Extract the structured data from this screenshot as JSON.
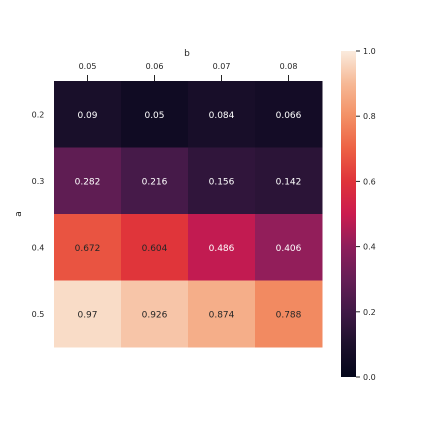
{
  "chart_data": {
    "type": "heatmap",
    "title": "",
    "xlabel": "b",
    "ylabel": "a",
    "x": [
      "0.05",
      "0.06",
      "0.07",
      "0.08"
    ],
    "y": [
      "0.2",
      "0.3",
      "0.4",
      "0.5"
    ],
    "values": [
      [
        0.09,
        0.05,
        0.084,
        0.066
      ],
      [
        0.282,
        0.216,
        0.156,
        0.142
      ],
      [
        0.672,
        0.604,
        0.486,
        0.406
      ],
      [
        0.97,
        0.926,
        0.874,
        0.788
      ]
    ],
    "annotations": [
      [
        "0.09",
        "0.05",
        "0.084",
        "0.066"
      ],
      [
        "0.282",
        "0.216",
        "0.156",
        "0.142"
      ],
      [
        "0.672",
        "0.604",
        "0.486",
        "0.406"
      ],
      [
        "0.97",
        "0.926",
        "0.874",
        "0.788"
      ]
    ],
    "colorbar": {
      "range": [
        0.0,
        1.0
      ],
      "ticks": [
        "0.0",
        "0.2",
        "0.4",
        "0.6",
        "0.8",
        "1.0"
      ],
      "colormap": "rocket"
    },
    "x_axis_position": "top",
    "grid": false
  }
}
